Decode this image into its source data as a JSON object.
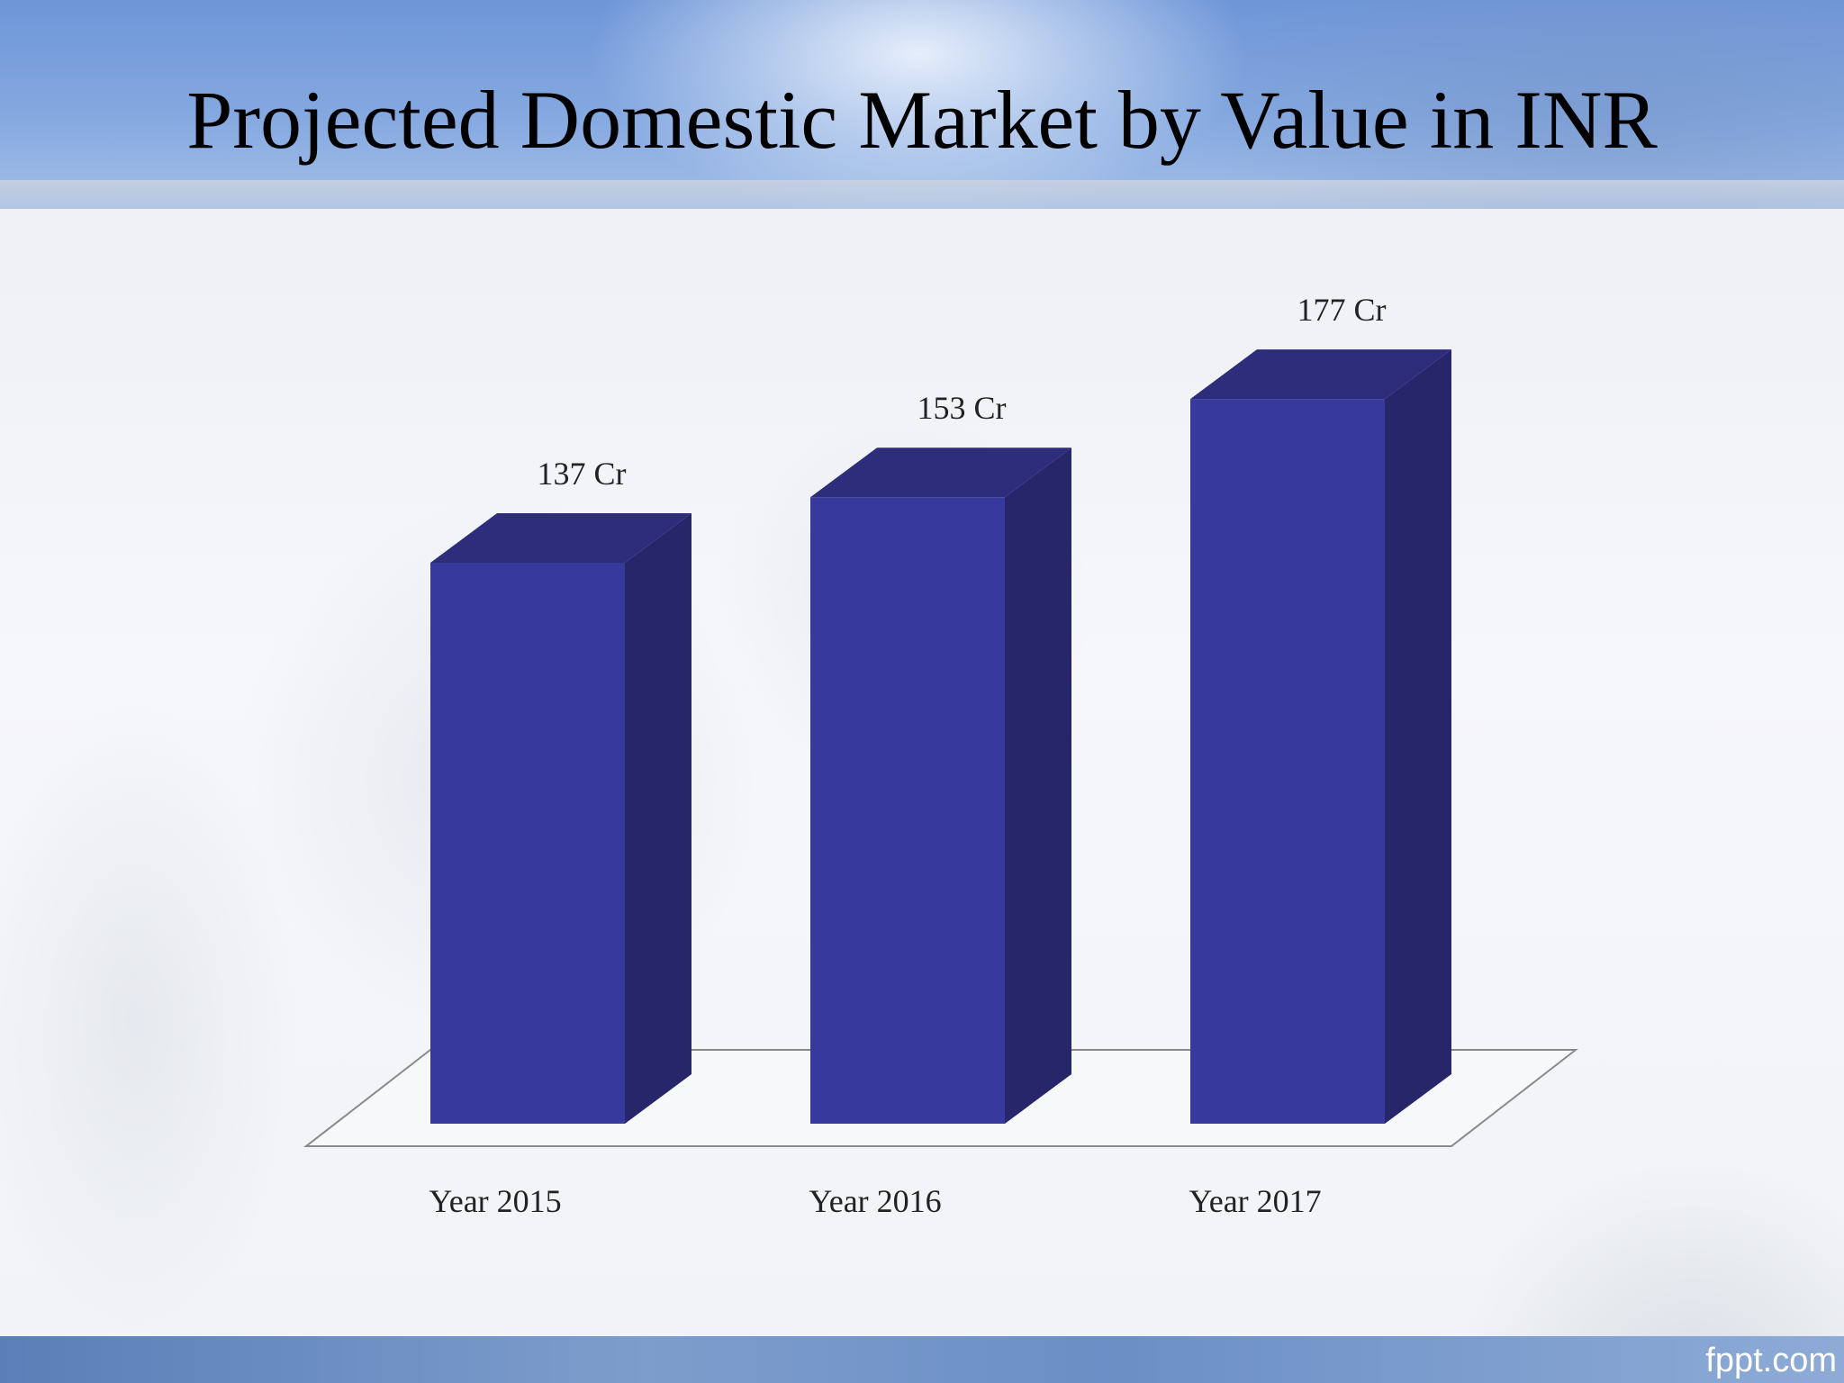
{
  "slide": {
    "title": "Projected Domestic Market by Value in INR",
    "footer_brand": "fppt.com"
  },
  "colors": {
    "bar_front": "#38399c",
    "bar_side": "#27266b",
    "bar_top": "#2e2d7c",
    "floor_stroke": "#8a8a8a",
    "text": "#222222"
  },
  "chart_data": {
    "type": "bar",
    "style": "3d-column",
    "title": "Projected Domestic Market by Value in INR",
    "categories": [
      "Year 2015",
      "Year 2016",
      "Year 2017"
    ],
    "values": [
      137,
      153,
      177
    ],
    "data_labels": [
      "137 Cr",
      "153 Cr",
      "177 Cr"
    ],
    "unit": "Cr",
    "xlabel": "",
    "ylabel": "",
    "y_axis_shown": false,
    "grid": false,
    "legend": "none"
  }
}
